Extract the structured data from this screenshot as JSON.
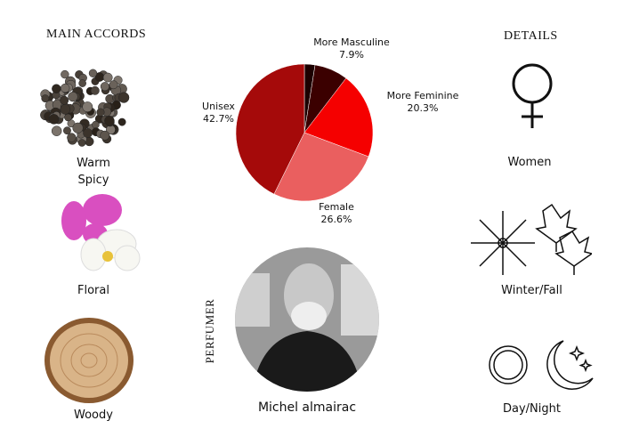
{
  "accords": {
    "title": "MAIN ACCORDS",
    "items": [
      {
        "label1": "Warm",
        "label2": "Spicy"
      },
      {
        "label1": "Floral"
      },
      {
        "label1": "Woody"
      }
    ]
  },
  "details": {
    "title": "DETAILS",
    "items": [
      "Women",
      "Winter/Fall",
      "Day/Night"
    ]
  },
  "perfumer": {
    "title": "PERFUMER",
    "name": "Michel almairac"
  },
  "chart_data": {
    "type": "pie",
    "slices": [
      {
        "name": "",
        "value": 2.5,
        "color": "#1c0000"
      },
      {
        "name": "More Masculine",
        "value": 7.9,
        "label": "7.9%",
        "color": "#3b0000"
      },
      {
        "name": "More Feminine",
        "value": 20.3,
        "label": "20.3%",
        "color": "#f50000"
      },
      {
        "name": "Female",
        "value": 26.6,
        "label": "26.6%",
        "color": "#ea5f5f"
      },
      {
        "name": "Unisex",
        "value": 42.7,
        "label": "42.7%",
        "color": "#a50a0a"
      }
    ],
    "start": "top",
    "direction": "clockwise"
  }
}
